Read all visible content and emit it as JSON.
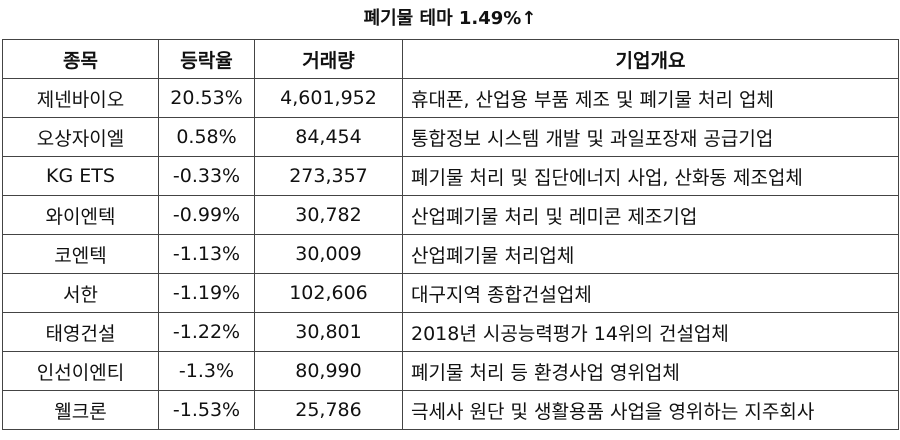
{
  "title": "폐기물 테마 1.49%↑",
  "headers": [
    "종목",
    "등락율",
    "거래량",
    "기업개요"
  ],
  "rows": [
    [
      "제넨바이오",
      "20.53%",
      "4,601,952",
      "휴대폰, 산업용 부품 제조 및 폐기물 처리 업체"
    ],
    [
      "오상자이엘",
      "0.58%",
      "84,454",
      "통합정보 시스템 개발 및 과일포장재 공급기업"
    ],
    [
      "KG ETS",
      "-0.33%",
      "273,357",
      "폐기물 처리 및 집단에너지 사업, 산화동 제조업체"
    ],
    [
      "와이엔텍",
      "-0.99%",
      "30,782",
      "산업폐기물 처리 및 레미콘 제조기업"
    ],
    [
      "코엔텍",
      "-1.13%",
      "30,009",
      "산업폐기물 처리업체"
    ],
    [
      "서한",
      "-1.19%",
      "102,606",
      "대구지역 종합건설업체"
    ],
    [
      "태영건설",
      "-1.22%",
      "30,801",
      "2018년 시공능력평가 14위의 건설업체"
    ],
    [
      "인선이엔티",
      "-1.3%",
      "80,990",
      "폐기물 처리 등 환경사업 영위업체"
    ],
    [
      "웰크론",
      "-1.53%",
      "25,786",
      "극세사 원단 및 생활용품 사업을 영위하는 지주회사"
    ]
  ]
}
